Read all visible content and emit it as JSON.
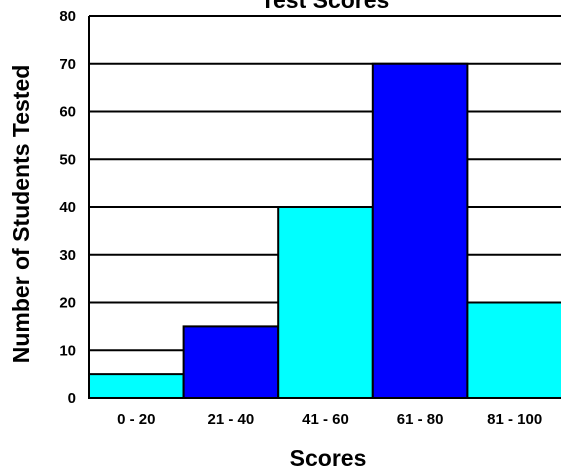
{
  "chart_data": {
    "type": "bar",
    "title": "Test Scores",
    "xlabel": "Scores",
    "ylabel": "Number of Students Tested",
    "categories": [
      "0 - 20",
      "21 - 40",
      "41 - 60",
      "61 - 80",
      "81 - 100"
    ],
    "values": [
      5,
      15,
      40,
      70,
      20
    ],
    "bar_colors": [
      "#00ffff",
      "#0000ff",
      "#00ffff",
      "#0000ff",
      "#00ffff"
    ],
    "ylim": [
      0,
      80
    ],
    "yticks": [
      0,
      10,
      20,
      30,
      40,
      50,
      60,
      70,
      80
    ],
    "grid": true,
    "legend": "none"
  }
}
